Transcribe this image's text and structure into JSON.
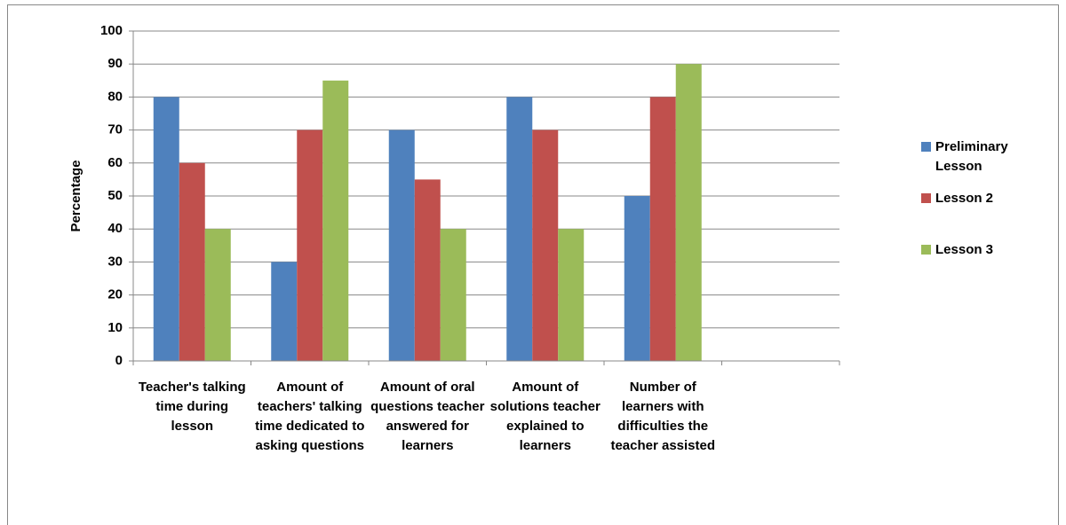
{
  "chart_data": {
    "type": "bar",
    "y_label": "Percentage",
    "categories": [
      "Teacher's talking time during lesson",
      "Amount of teachers' talking time dedicated to asking questions",
      "Amount of oral questions teacher answered for learners",
      "Amount of solutions teacher explained to learners",
      "Number of learners with difficulties the teacher assisted",
      null
    ],
    "series": [
      {
        "name": "Preliminary Lesson",
        "color": "#4f81bd",
        "values": [
          80,
          30,
          70,
          80,
          50,
          null
        ]
      },
      {
        "name": "Lesson 2",
        "color": "#c0504d",
        "values": [
          60,
          70,
          55,
          70,
          80,
          null
        ]
      },
      {
        "name": "Lesson 3",
        "color": "#9bbb59",
        "values": [
          40,
          85,
          40,
          40,
          90,
          null
        ]
      }
    ],
    "ylim": [
      0,
      100
    ],
    "yticks": [
      0,
      10,
      20,
      30,
      40,
      50,
      60,
      70,
      80,
      90,
      100
    ],
    "grid": true,
    "legend": "right"
  }
}
